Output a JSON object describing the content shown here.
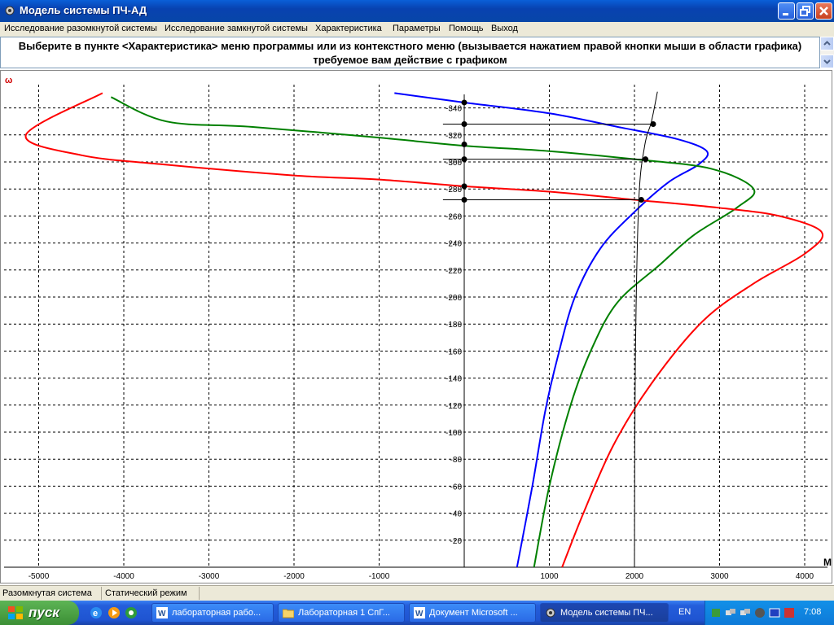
{
  "window": {
    "title": "Модель системы ПЧ-АД"
  },
  "menu": {
    "items": [
      "Исследование разомкнутой системы",
      "Исследование замкнутой системы",
      "Характеристика",
      "Параметры",
      "Помощь",
      "Выход"
    ]
  },
  "info": {
    "line1": "Выберите в пункте <Характеристика> меню программы или из контекстного меню (вызывается нажатием правой кнопки мыши в области графика)",
    "line2": "требуемое вам действие с графиком"
  },
  "chart_data": {
    "type": "line",
    "ylabel": "ω",
    "xlabel": "M",
    "xlim": [
      -5300,
      4300
    ],
    "ylim": [
      0,
      350
    ],
    "grid": true,
    "x_ticks": [
      -5000,
      -4000,
      -3000,
      -2000,
      -1000,
      1000,
      2000,
      3000,
      4000
    ],
    "y_ticks": [
      20,
      40,
      60,
      80,
      100,
      120,
      140,
      160,
      180,
      200,
      220,
      240,
      260,
      280,
      300,
      320,
      340
    ],
    "series": [
      {
        "color": "#0000ff",
        "points": [
          [
            -820,
            351
          ],
          [
            0,
            344
          ],
          [
            1000,
            336
          ],
          [
            1800,
            326
          ],
          [
            2500,
            317
          ],
          [
            2850,
            308
          ],
          [
            2750,
            298
          ],
          [
            2400,
            285
          ],
          [
            2000,
            263
          ],
          [
            1600,
            236
          ],
          [
            1300,
            200
          ],
          [
            1100,
            156
          ],
          [
            950,
            115
          ],
          [
            800,
            60
          ],
          [
            620,
            0
          ]
        ]
      },
      {
        "color": "#008000",
        "points": [
          [
            -4150,
            348
          ],
          [
            -3500,
            330
          ],
          [
            -2500,
            326
          ],
          [
            -1000,
            318
          ],
          [
            0,
            312
          ],
          [
            1000,
            308
          ],
          [
            2000,
            302
          ],
          [
            2900,
            295
          ],
          [
            3400,
            280
          ],
          [
            3200,
            266
          ],
          [
            2700,
            246
          ],
          [
            2300,
            224
          ],
          [
            1800,
            196
          ],
          [
            1500,
            162
          ],
          [
            1250,
            120
          ],
          [
            1000,
            60
          ],
          [
            820,
            0
          ]
        ]
      },
      {
        "color": "#ff0000",
        "points": [
          [
            -4250,
            351
          ],
          [
            -5150,
            320
          ],
          [
            -4500,
            305
          ],
          [
            -3500,
            298
          ],
          [
            -2000,
            290
          ],
          [
            -1000,
            287
          ],
          [
            0,
            282
          ],
          [
            1000,
            278
          ],
          [
            2000,
            272
          ],
          [
            3000,
            266
          ],
          [
            3700,
            260
          ],
          [
            4200,
            248
          ],
          [
            4000,
            232
          ],
          [
            3400,
            210
          ],
          [
            2800,
            182
          ],
          [
            2200,
            136
          ],
          [
            1750,
            90
          ],
          [
            1400,
            40
          ],
          [
            1150,
            0
          ]
        ]
      },
      {
        "color": "#000000",
        "points": [
          [
            2000,
            0
          ],
          [
            2010,
            150
          ],
          [
            2050,
            270
          ],
          [
            2120,
            312
          ],
          [
            2200,
            330
          ],
          [
            2270,
            352
          ]
        ]
      }
    ],
    "markers": [
      [
        0,
        344
      ],
      [
        0,
        328
      ],
      [
        0,
        313
      ],
      [
        0,
        302
      ],
      [
        0,
        282
      ],
      [
        0,
        272
      ],
      [
        2220,
        328
      ],
      [
        2130,
        302
      ],
      [
        2080,
        272
      ]
    ],
    "hlines": [
      [
        -250,
        2220,
        328
      ],
      [
        -250,
        2130,
        302
      ],
      [
        -250,
        2080,
        272
      ]
    ]
  },
  "status": {
    "mode": "Разомкнутая система",
    "regime": "Статический режим"
  },
  "taskbar": {
    "start": "пуск",
    "tasks": [
      "лабораторная рабо...",
      "Лабораторная 1 СпГ...",
      "Документ Microsoft ...",
      "Модель системы ПЧ..."
    ],
    "lang": "EN",
    "time": "7:08"
  },
  "colors": {
    "blue": "#0000ff",
    "green": "#008000",
    "red": "#ff0000",
    "titlebar": "#0842b0",
    "taskbar": "#245edb"
  }
}
